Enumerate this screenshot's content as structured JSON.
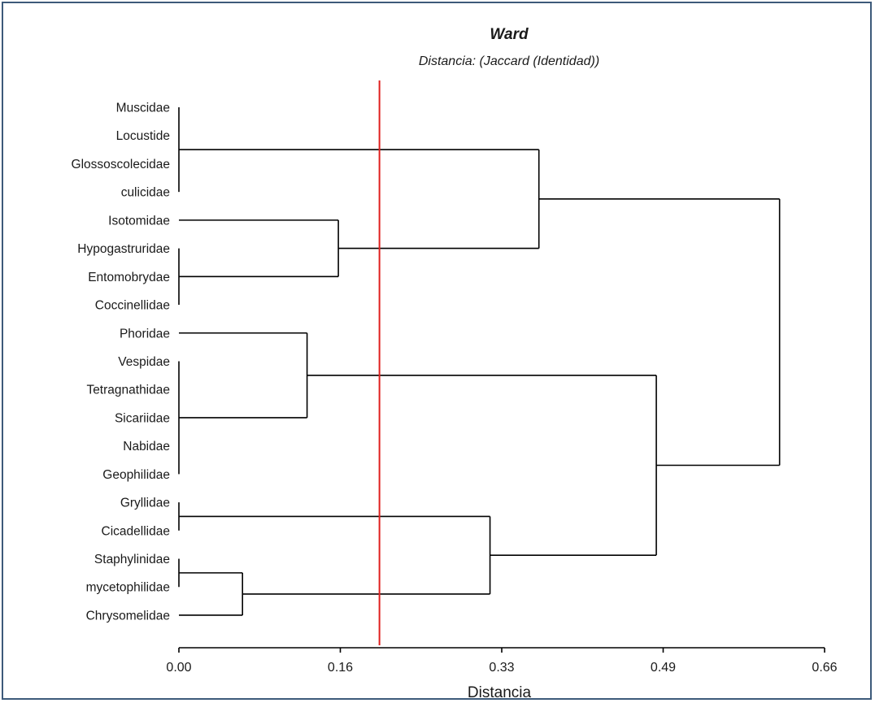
{
  "chart_data": {
    "type": "dendrogram",
    "title": "Ward",
    "subtitle": "Distancia: (Jaccard (Identidad))",
    "xlabel": "Distancia",
    "xlim": [
      0,
      0.66
    ],
    "x_ticks": [
      "0.00",
      "0.16",
      "0.33",
      "0.49",
      "0.66"
    ],
    "cut_line": {
      "value": 0.205,
      "color": "#e0201e"
    },
    "line_color": "#000000",
    "leaves": [
      "Muscidae",
      "Locustide",
      "Glossoscolecidae",
      "culicidae",
      "Isotomidae",
      "Hypogastruridae",
      "Entomobrydae",
      "Coccinellidae",
      "Phoridae",
      "Vespidae",
      "Tetragnathidae",
      "Sicariidae",
      "Nabidae",
      "Geophilidae",
      "Gryllidae",
      "Cicadellidae",
      "Staphylinidae",
      "mycetophilidae",
      "Chrysomelidae"
    ],
    "groups": [
      {
        "id": "G1",
        "leaves": [
          0,
          1,
          2,
          3
        ],
        "height": 0
      },
      {
        "id": "G2",
        "leaves": [
          5,
          6,
          7
        ],
        "height": 0
      },
      {
        "id": "G3",
        "leaves": [
          9,
          10,
          11,
          12,
          13
        ],
        "height": 0
      },
      {
        "id": "G4",
        "leaves": [
          14,
          15
        ],
        "height": 0
      },
      {
        "id": "G5",
        "leaves": [
          16,
          17
        ],
        "height": 0
      }
    ],
    "merges": [
      {
        "id": "M1",
        "children": [
          "G5",
          "L18"
        ],
        "height": 0.065
      },
      {
        "id": "M2",
        "children": [
          "L8",
          "G3"
        ],
        "height": 0.131
      },
      {
        "id": "M3",
        "children": [
          "L4",
          "G2"
        ],
        "height": 0.163
      },
      {
        "id": "M4",
        "children": [
          "G4",
          "M1"
        ],
        "height": 0.318
      },
      {
        "id": "M5",
        "children": [
          "G1",
          "M3"
        ],
        "height": 0.368
      },
      {
        "id": "M6",
        "children": [
          "M2",
          "M4"
        ],
        "height": 0.488
      },
      {
        "id": "M7",
        "children": [
          "M5",
          "M6"
        ],
        "height": 0.614
      }
    ]
  }
}
